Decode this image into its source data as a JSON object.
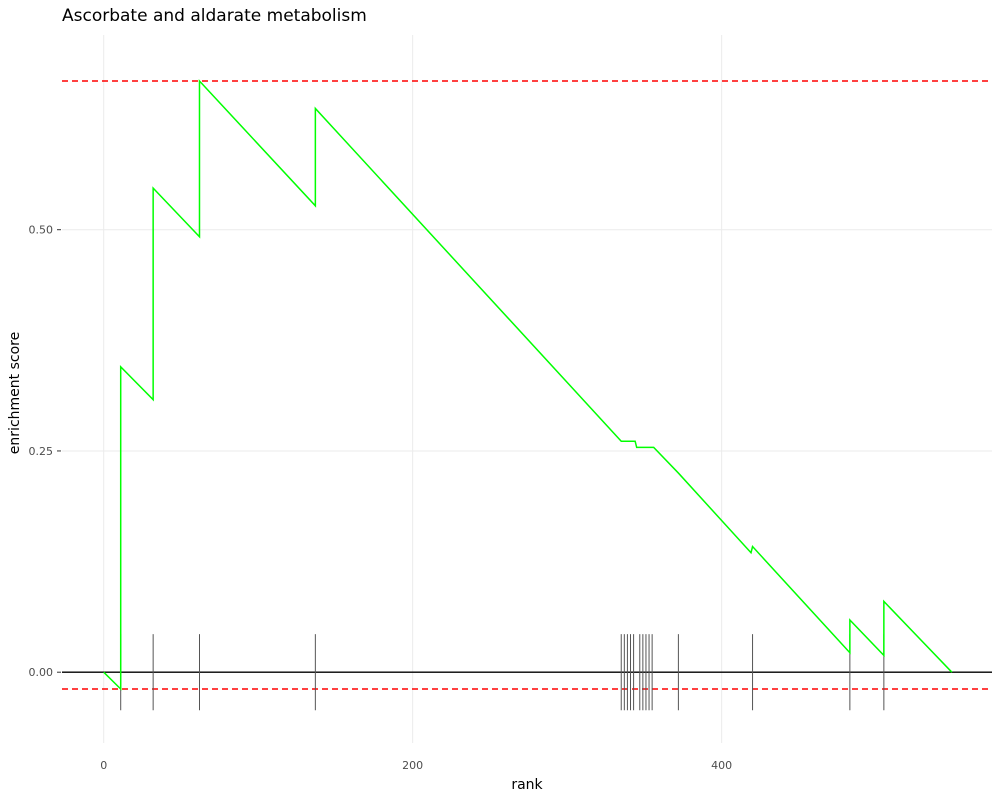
{
  "chart_data": {
    "type": "line",
    "title": "Ascorbate and aldarate metabolism",
    "xlabel": "rank",
    "ylabel": "enrichment score",
    "xlim": [
      -27,
      575
    ],
    "ylim": [
      -0.08,
      0.72
    ],
    "x_ticks": [
      0,
      200,
      400
    ],
    "x_tick_labels": [
      "0",
      "200",
      "400"
    ],
    "y_ticks": [
      0,
      0.25,
      0.5
    ],
    "y_tick_labels": [
      "0.00",
      "0.25",
      "0.50"
    ],
    "grid": true,
    "series": [
      {
        "points": [
          [
            0,
            0.0
          ],
          [
            11,
            -0.019
          ],
          [
            11,
            0.345
          ],
          [
            32,
            0.308
          ],
          [
            32,
            0.547
          ],
          [
            62,
            0.492
          ],
          [
            62,
            0.668
          ],
          [
            137,
            0.527
          ],
          [
            137,
            0.637
          ],
          [
            335,
            0.261
          ],
          [
            344,
            0.261
          ],
          [
            345,
            0.254
          ],
          [
            356,
            0.254
          ],
          [
            372,
            0.225
          ],
          [
            419,
            0.135
          ],
          [
            420,
            0.142
          ],
          [
            483,
            0.022
          ],
          [
            483,
            0.059
          ],
          [
            505,
            0.019
          ],
          [
            505,
            0.08
          ],
          [
            549,
            0.0
          ]
        ],
        "color": "#00ff00"
      }
    ],
    "hit_ranks": [
      11,
      32,
      62,
      137,
      335,
      337,
      339,
      341,
      343,
      347,
      349,
      351,
      353,
      355,
      372,
      420,
      483,
      505
    ],
    "hit_range": [
      -0.043,
      0.043
    ],
    "reference_lines": [
      {
        "y": 0.668,
        "color": "#ff0000",
        "style": "dashed"
      },
      {
        "y": -0.019,
        "color": "#ff0000",
        "style": "dashed"
      }
    ],
    "zero_line": {
      "y": 0,
      "color": "#000000"
    }
  }
}
